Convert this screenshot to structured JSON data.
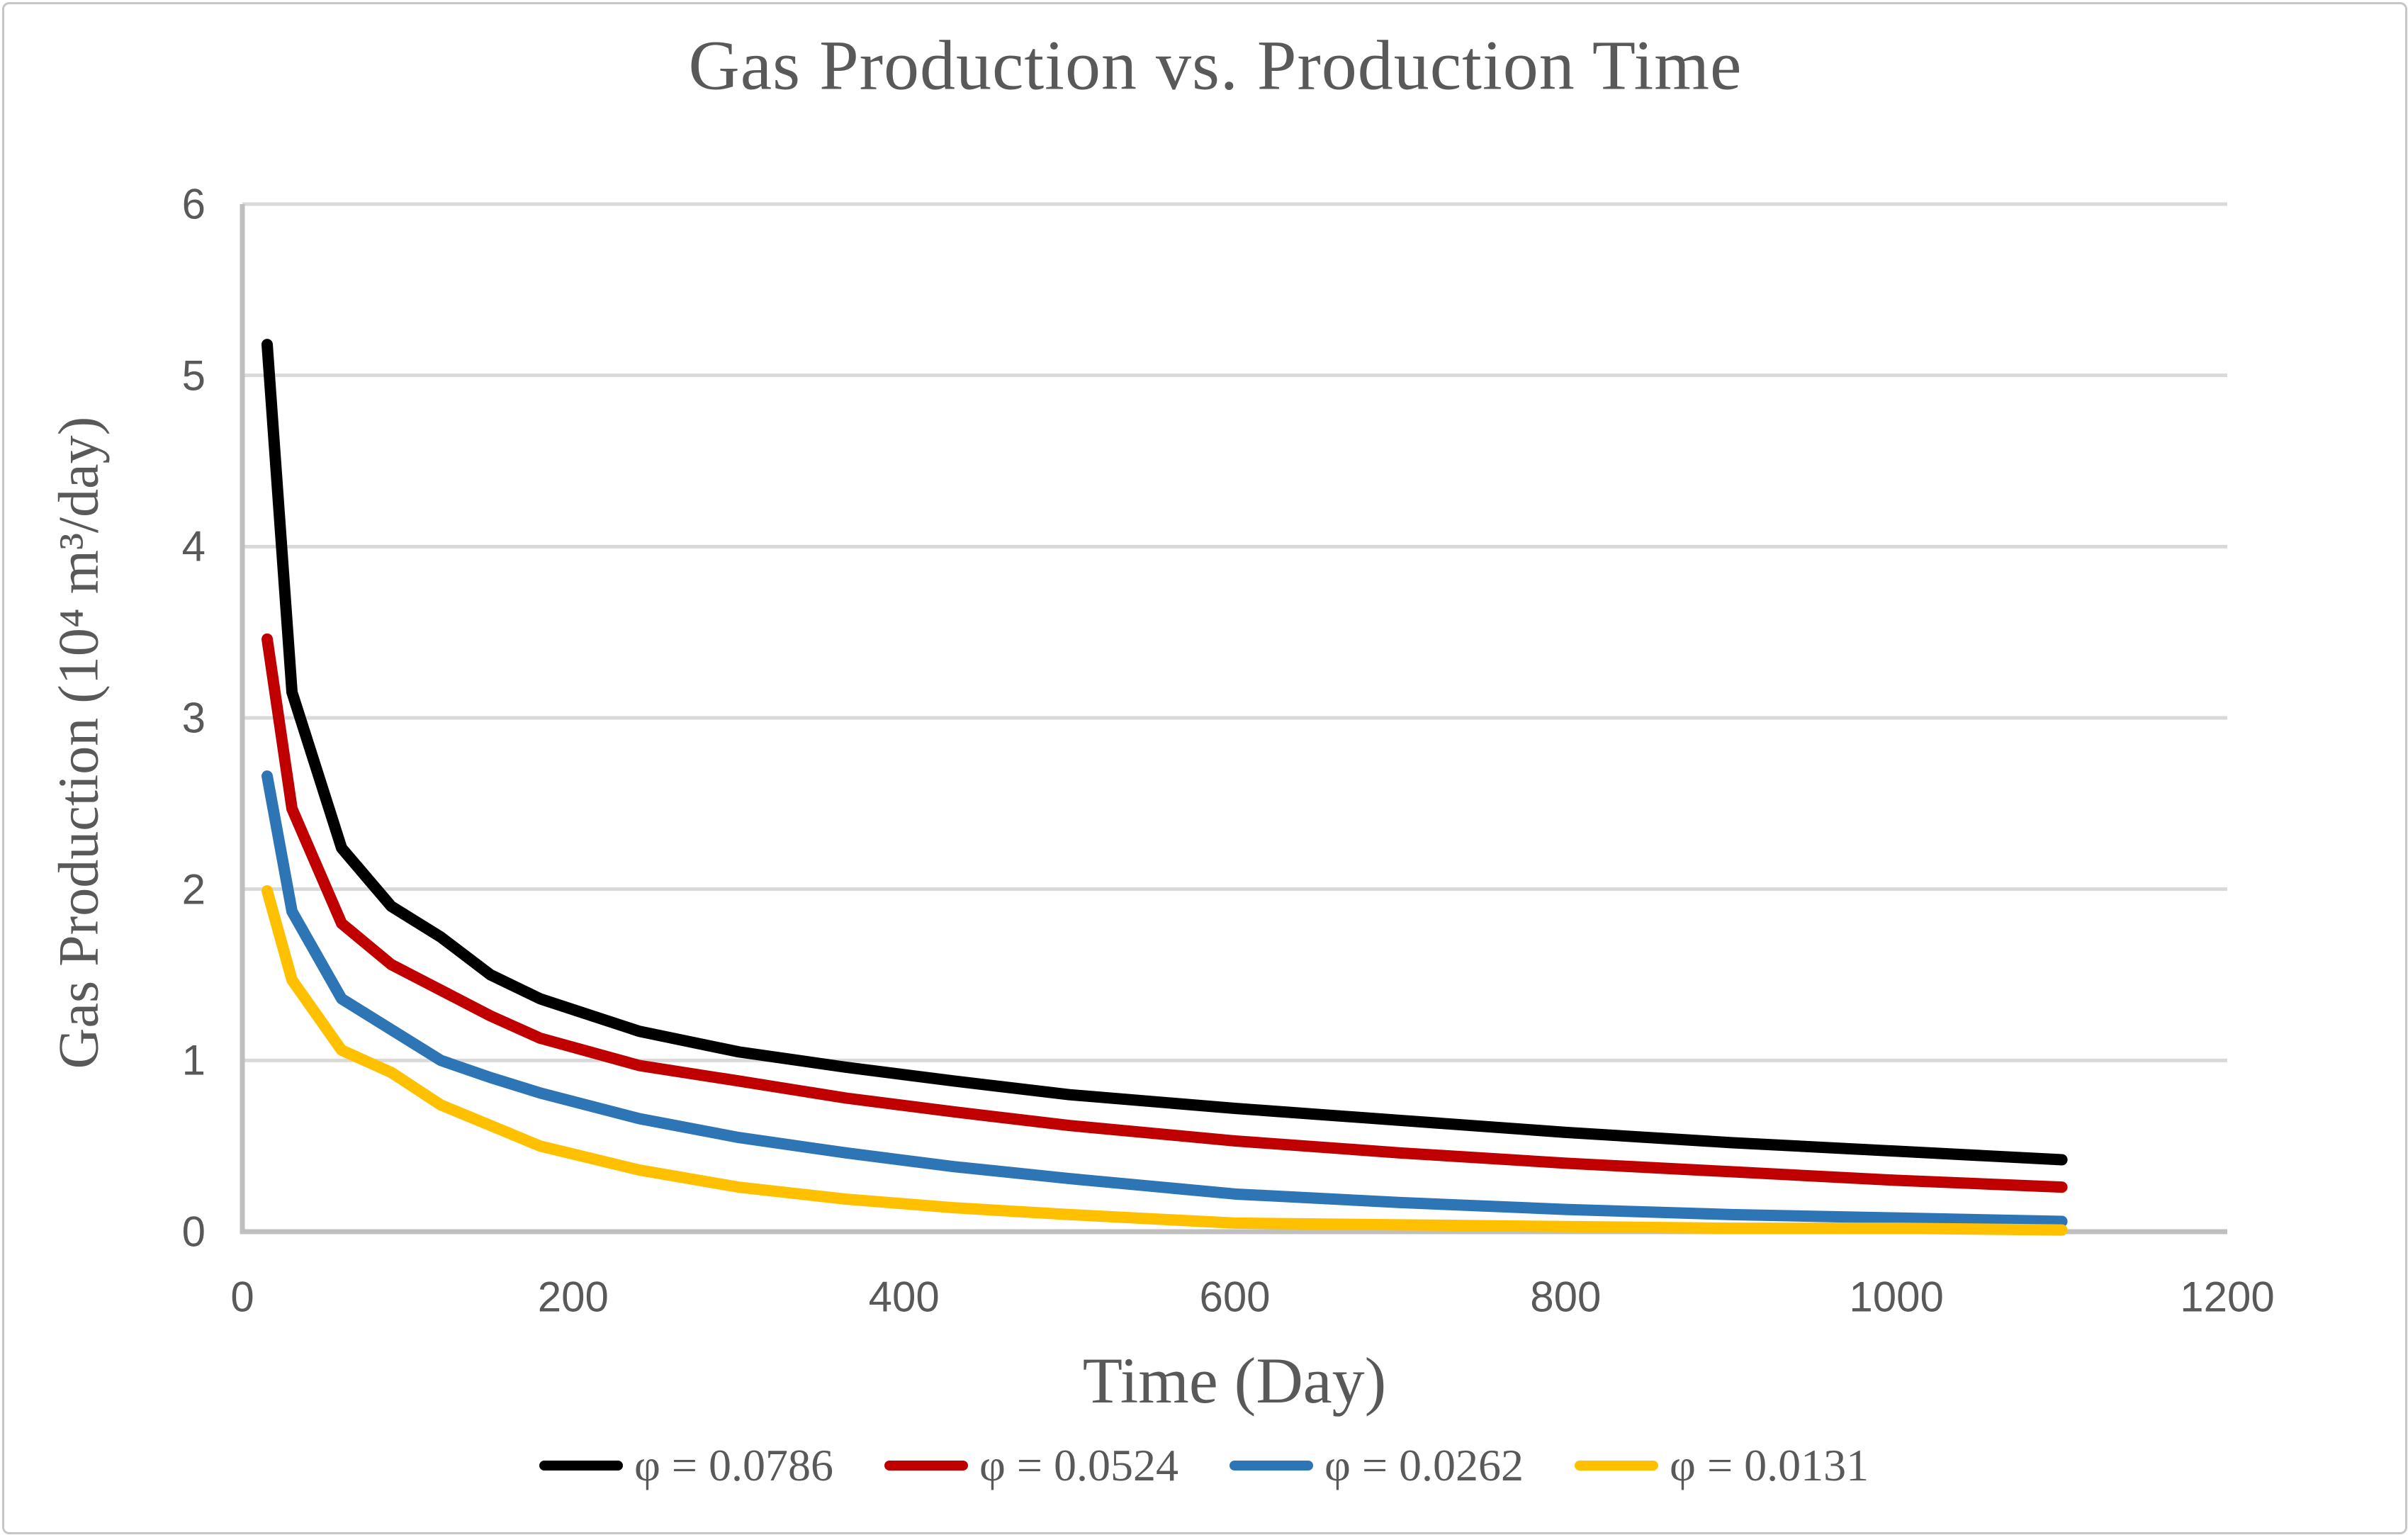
{
  "chart_data": {
    "type": "line",
    "title": "Gas Production vs. Production Time",
    "xlabel": "Time (Day)",
    "ylabel": "Gas Production (10⁴ m³/day)",
    "xlim": [
      0,
      1200
    ],
    "ylim": [
      0,
      6
    ],
    "x_ticks": [
      "0",
      "200",
      "400",
      "600",
      "800",
      "1000",
      "1200"
    ],
    "x_tick_values": [
      0,
      200,
      400,
      600,
      800,
      1000,
      1200
    ],
    "y_ticks": [
      "0",
      "1",
      "2",
      "3",
      "4",
      "5",
      "6"
    ],
    "y_tick_values": [
      0,
      1,
      2,
      3,
      4,
      5,
      6
    ],
    "grid": "horizontal-only",
    "legend_position": "bottom-center",
    "x": [
      15,
      30,
      60,
      90,
      120,
      150,
      180,
      240,
      300,
      365,
      430,
      500,
      600,
      700,
      800,
      900,
      1000,
      1100
    ],
    "series": [
      {
        "name": "φ = 0.0786",
        "color": "#000000",
        "values": [
          5.18,
          3.15,
          2.24,
          1.9,
          1.72,
          1.5,
          1.36,
          1.17,
          1.05,
          0.96,
          0.88,
          0.8,
          0.72,
          0.65,
          0.58,
          0.52,
          0.47,
          0.42
        ]
      },
      {
        "name": "φ = 0.0524",
        "color": "#c00000",
        "values": [
          3.46,
          2.47,
          1.8,
          1.56,
          1.41,
          1.26,
          1.13,
          0.97,
          0.88,
          0.78,
          0.7,
          0.62,
          0.53,
          0.46,
          0.4,
          0.35,
          0.3,
          0.26
        ]
      },
      {
        "name": "φ = 0.0262",
        "color": "#2e75b6",
        "values": [
          2.66,
          1.87,
          1.36,
          1.18,
          1.0,
          0.9,
          0.81,
          0.66,
          0.55,
          0.46,
          0.38,
          0.31,
          0.22,
          0.17,
          0.13,
          0.1,
          0.08,
          0.06
        ]
      },
      {
        "name": "φ = 0.0131",
        "color": "#ffc000",
        "values": [
          1.99,
          1.47,
          1.06,
          0.93,
          0.74,
          0.62,
          0.5,
          0.36,
          0.26,
          0.19,
          0.14,
          0.1,
          0.05,
          0.04,
          0.03,
          0.02,
          0.02,
          0.01
        ]
      }
    ],
    "text_color": "#595959",
    "gridline_color": "#d9d9d9",
    "axis_color": "#bfbfbf",
    "background_color": "#ffffff"
  }
}
